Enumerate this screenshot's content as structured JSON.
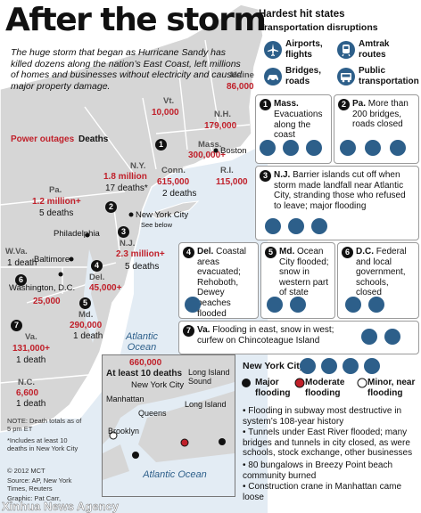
{
  "title": "After the storm",
  "intro": "The huge storm that began as Hurricane Sandy has killed dozens along the nation’s East Coast, left millions of homes and businesses without electricity and caused major property damage.",
  "legend": {
    "outages": "Power outages",
    "deaths": "Deaths"
  },
  "colors": {
    "outage_red": "#c0202a",
    "accent_blue": "#2d5f8a",
    "land": "#d6d6d6",
    "water": "#e3ecf4"
  },
  "map": {
    "states": [
      {
        "id": "maine",
        "name": "Maine",
        "outages": "86,000",
        "deaths": ""
      },
      {
        "id": "vt",
        "name": "Vt.",
        "outages": "10,000",
        "deaths": ""
      },
      {
        "id": "nh",
        "name": "N.H.",
        "outages": "179,000",
        "deaths": ""
      },
      {
        "id": "mass",
        "name": "Mass.",
        "outages": "300,000+",
        "deaths": ""
      },
      {
        "id": "ny",
        "name": "N.Y.",
        "outages": "1.8 million",
        "deaths": "17 deaths*"
      },
      {
        "id": "conn",
        "name": "Conn.",
        "outages": "615,000",
        "deaths": "2 deaths"
      },
      {
        "id": "ri",
        "name": "R.I.",
        "outages": "115,000",
        "deaths": ""
      },
      {
        "id": "pa",
        "name": "Pa.",
        "outages": "1.2 million+",
        "deaths": "5 deaths"
      },
      {
        "id": "nj",
        "name": "N.J.",
        "outages": "2.3 million+",
        "deaths": "5 deaths"
      },
      {
        "id": "wva",
        "name": "W.Va.",
        "outages": "",
        "deaths": "1 death"
      },
      {
        "id": "del",
        "name": "Del.",
        "outages": "45,000+",
        "deaths": ""
      },
      {
        "id": "dc",
        "name": "",
        "outages": "25,000",
        "deaths": ""
      },
      {
        "id": "md",
        "name": "Md.",
        "outages": "290,000",
        "deaths": "1 death"
      },
      {
        "id": "va",
        "name": "Va.",
        "outages": "131,000+",
        "deaths": "1 death"
      },
      {
        "id": "nc",
        "name": "N.C.",
        "outages": "6,600",
        "deaths": "1 death"
      }
    ],
    "cities": {
      "boston": "Boston",
      "nyc": "New York City",
      "see_below": "See below",
      "philadelphia": "Philadelphia",
      "baltimore": "Baltimore",
      "washington": "Washington, D.C."
    },
    "markers": [
      "1",
      "2",
      "3",
      "4",
      "5",
      "6",
      "7"
    ],
    "ocean": "Atlantic Ocean",
    "note": "NOTE: Death totals as of 5 pm ET",
    "footnote": "*Includes at least 10 deaths in New York City",
    "credit": "© 2012 MCT",
    "source": "Source: AP, New York Times, Reuters",
    "graphic": "Graphic: Pat Carr,",
    "watermark": "Xinhua News Agency"
  },
  "inset": {
    "outages": "660,000",
    "deaths": "At least 10 deaths",
    "places": [
      "Long Island Sound",
      "New York City",
      "Long Island",
      "Manhattan",
      "Queens",
      "Brooklyn"
    ],
    "ocean": "Atlantic Ocean"
  },
  "panel": {
    "header": "Hardest hit states",
    "transport_header": "Transportation disruptions",
    "transport": [
      {
        "icon": "airplane-icon",
        "label": "Airports, flights"
      },
      {
        "icon": "train-icon",
        "label": "Amtrak routes"
      },
      {
        "icon": "car-icon",
        "label": "Bridges, roads"
      },
      {
        "icon": "bus-icon",
        "label": "Public transportation"
      }
    ],
    "states": [
      {
        "num": "1",
        "name": "Mass.",
        "text": "Evacuations along the coast",
        "icons": [
          "airplane-icon",
          "train-icon",
          "bus-icon"
        ]
      },
      {
        "num": "2",
        "name": "Pa.",
        "text": "More than 200 bridges, roads closed",
        "icons": [
          "car-icon",
          "train-icon",
          "bus-icon"
        ]
      },
      {
        "num": "3",
        "name": "N.J.",
        "text": "Barrier islands cut off when storm made landfall near Atlantic City, stranding those who refused to leave; major flooding",
        "icons": [
          "car-icon",
          "train-icon",
          "bus-icon"
        ]
      },
      {
        "num": "4",
        "name": "Del.",
        "text": "Coastal areas evacuated; Rehoboth, Dewey beaches flooded",
        "icons": [
          "train-icon"
        ]
      },
      {
        "num": "5",
        "name": "Md.",
        "text": "Ocean City flooded; snow in western part of state",
        "icons": [
          "train-icon",
          "bus-icon"
        ]
      },
      {
        "num": "6",
        "name": "D.C.",
        "text": "Federal and local government, schools, closed",
        "icons": [
          "train-icon",
          "bus-icon"
        ]
      },
      {
        "num": "7",
        "name": "Va.",
        "text": "Flooding in east, snow in west; curfew on Chincoteague Island",
        "icons": [
          "train-icon",
          "bus-icon"
        ]
      }
    ],
    "nyc": {
      "header": "New York City",
      "icons": [
        "airplane-icon",
        "train-icon",
        "car-icon",
        "bus-icon"
      ],
      "flood_legend": [
        {
          "color": "#111111",
          "label": "Major flooding"
        },
        {
          "color": "#c0202a",
          "label": "Moderate flooding"
        },
        {
          "color": "#ffffff",
          "label": "Minor, near flooding"
        }
      ],
      "bullets": [
        "Flooding in subway most destructive in system’s 108-year history",
        "Tunnels under East River flooded; many bridges and tunnels in city closed, as were schools, stock exchange, other businesses",
        "80 bungalows in Breezy Point beach community burned",
        "Construction crane in Manhattan came loose"
      ]
    }
  }
}
